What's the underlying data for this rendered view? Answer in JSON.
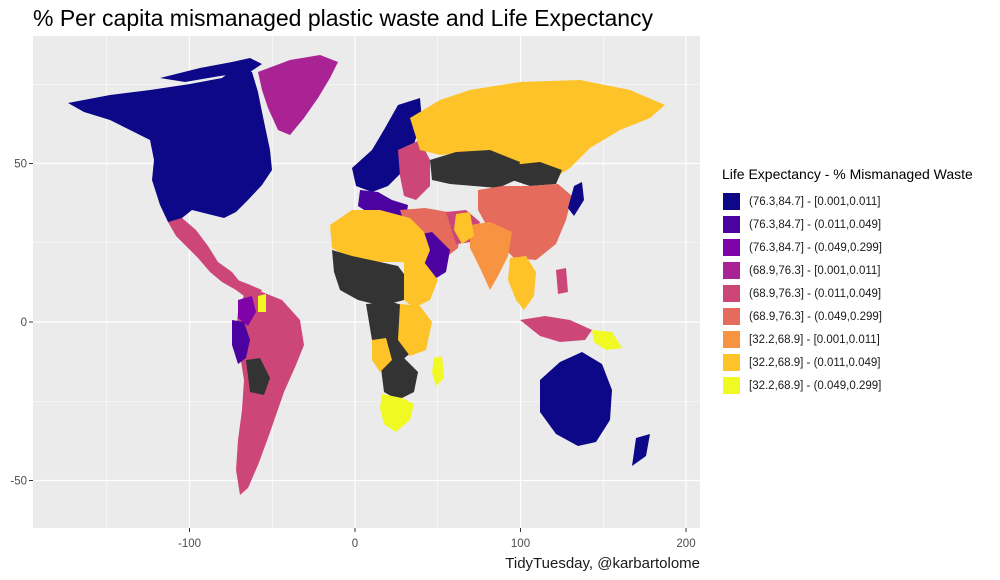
{
  "title": "% Per capita mismanaged plastic waste and Life Expectancy",
  "caption": "TidyTuesday, @karbartolome",
  "colors": {
    "panel": "#ebebeb",
    "grid": "#ffffff",
    "missing": "#333333"
  },
  "axes": {
    "x_ticks": [
      {
        "value": -100,
        "label": "-100"
      },
      {
        "value": 0,
        "label": "0"
      },
      {
        "value": 100,
        "label": "100"
      },
      {
        "value": 200,
        "label": "200"
      }
    ],
    "y_ticks": [
      {
        "value": 50,
        "label": "50"
      },
      {
        "value": 0,
        "label": "0"
      },
      {
        "value": -50,
        "label": "-50"
      }
    ],
    "xlim": [
      -195,
      208
    ],
    "ylim": [
      -65,
      87
    ]
  },
  "legend": {
    "title": "Life Expectancy - % Mismanaged Waste",
    "position": "right",
    "items": [
      {
        "label": "(76.3,84.7] - [0.001,0.011]",
        "color": "#0d0887"
      },
      {
        "label": "(76.3,84.7] - (0.011,0.049]",
        "color": "#4c02a1"
      },
      {
        "label": "(76.3,84.7] - (0.049,0.299]",
        "color": "#7e03a8"
      },
      {
        "label": "(68.9,76.3] - [0.001,0.011]",
        "color": "#a92395"
      },
      {
        "label": "(68.9,76.3] - (0.011,0.049]",
        "color": "#cc4778"
      },
      {
        "label": "(68.9,76.3] - (0.049,0.299]",
        "color": "#e56b5d"
      },
      {
        "label": "[32.2,68.9] - [0.001,0.011]",
        "color": "#f89441"
      },
      {
        "label": "[32.2,68.9] - (0.011,0.049]",
        "color": "#fdc328"
      },
      {
        "label": "[32.2,68.9] - (0.049,0.299]",
        "color": "#f0f921"
      }
    ]
  }
}
